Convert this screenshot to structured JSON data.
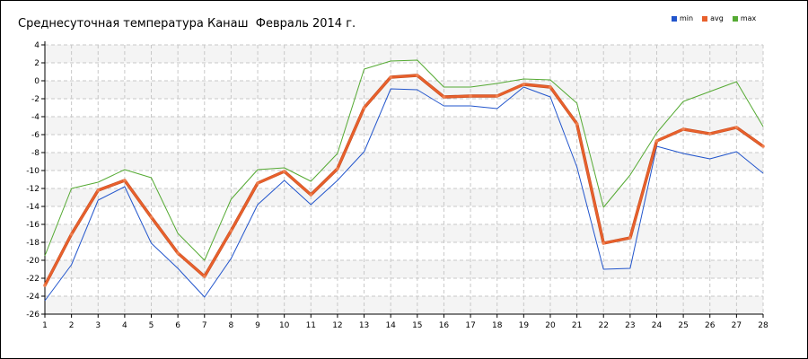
{
  "chart_data": {
    "type": "line",
    "title": "Среднесуточная температура Канаш  Февраль 2014 г.",
    "xlabel": "",
    "ylabel": "",
    "x": [
      1,
      2,
      3,
      4,
      5,
      6,
      7,
      8,
      9,
      10,
      11,
      12,
      13,
      14,
      15,
      16,
      17,
      18,
      19,
      20,
      21,
      22,
      23,
      24,
      25,
      26,
      27,
      28
    ],
    "xlim": [
      1,
      28
    ],
    "ylim": [
      -26,
      4
    ],
    "y_ticks": [
      4,
      2,
      0,
      -2,
      -4,
      -6,
      -8,
      -10,
      -12,
      -14,
      -16,
      -18,
      -20,
      -22,
      -24,
      -26
    ],
    "grid": true,
    "legend_position": "top-right",
    "series": [
      {
        "name": "min",
        "color": "#2255cc",
        "values": [
          -24.5,
          -20.5,
          -13.3,
          -11.8,
          -18.1,
          -20.9,
          -24.1,
          -19.8,
          -13.8,
          -11.1,
          -13.8,
          -11.1,
          -7.9,
          -0.9,
          -1.0,
          -2.8,
          -2.8,
          -3.1,
          -0.7,
          -1.8,
          -9.6,
          -21.0,
          -20.9,
          -7.3,
          -8.1,
          -8.7,
          -7.9,
          -10.3
        ]
      },
      {
        "name": "avg",
        "color": "#e8602c",
        "values": [
          -22.8,
          -17.1,
          -12.2,
          -11.1,
          -15.2,
          -19.2,
          -21.8,
          -16.7,
          -11.4,
          -10.1,
          -12.7,
          -9.8,
          -3.0,
          0.4,
          0.6,
          -1.8,
          -1.7,
          -1.7,
          -0.4,
          -0.7,
          -4.8,
          -18.1,
          -17.5,
          -6.7,
          -5.4,
          -5.9,
          -5.2,
          -7.3
        ]
      },
      {
        "name": "max",
        "color": "#55aa33",
        "values": [
          -19.5,
          -12.0,
          -11.3,
          -9.9,
          -10.8,
          -17.0,
          -20.0,
          -13.2,
          -9.9,
          -9.7,
          -11.2,
          -8.1,
          1.3,
          2.2,
          2.3,
          -0.7,
          -0.7,
          -0.3,
          0.2,
          0.1,
          -2.5,
          -14.1,
          -10.5,
          -5.8,
          -2.3,
          -1.2,
          -0.1,
          -5.1
        ]
      }
    ]
  }
}
